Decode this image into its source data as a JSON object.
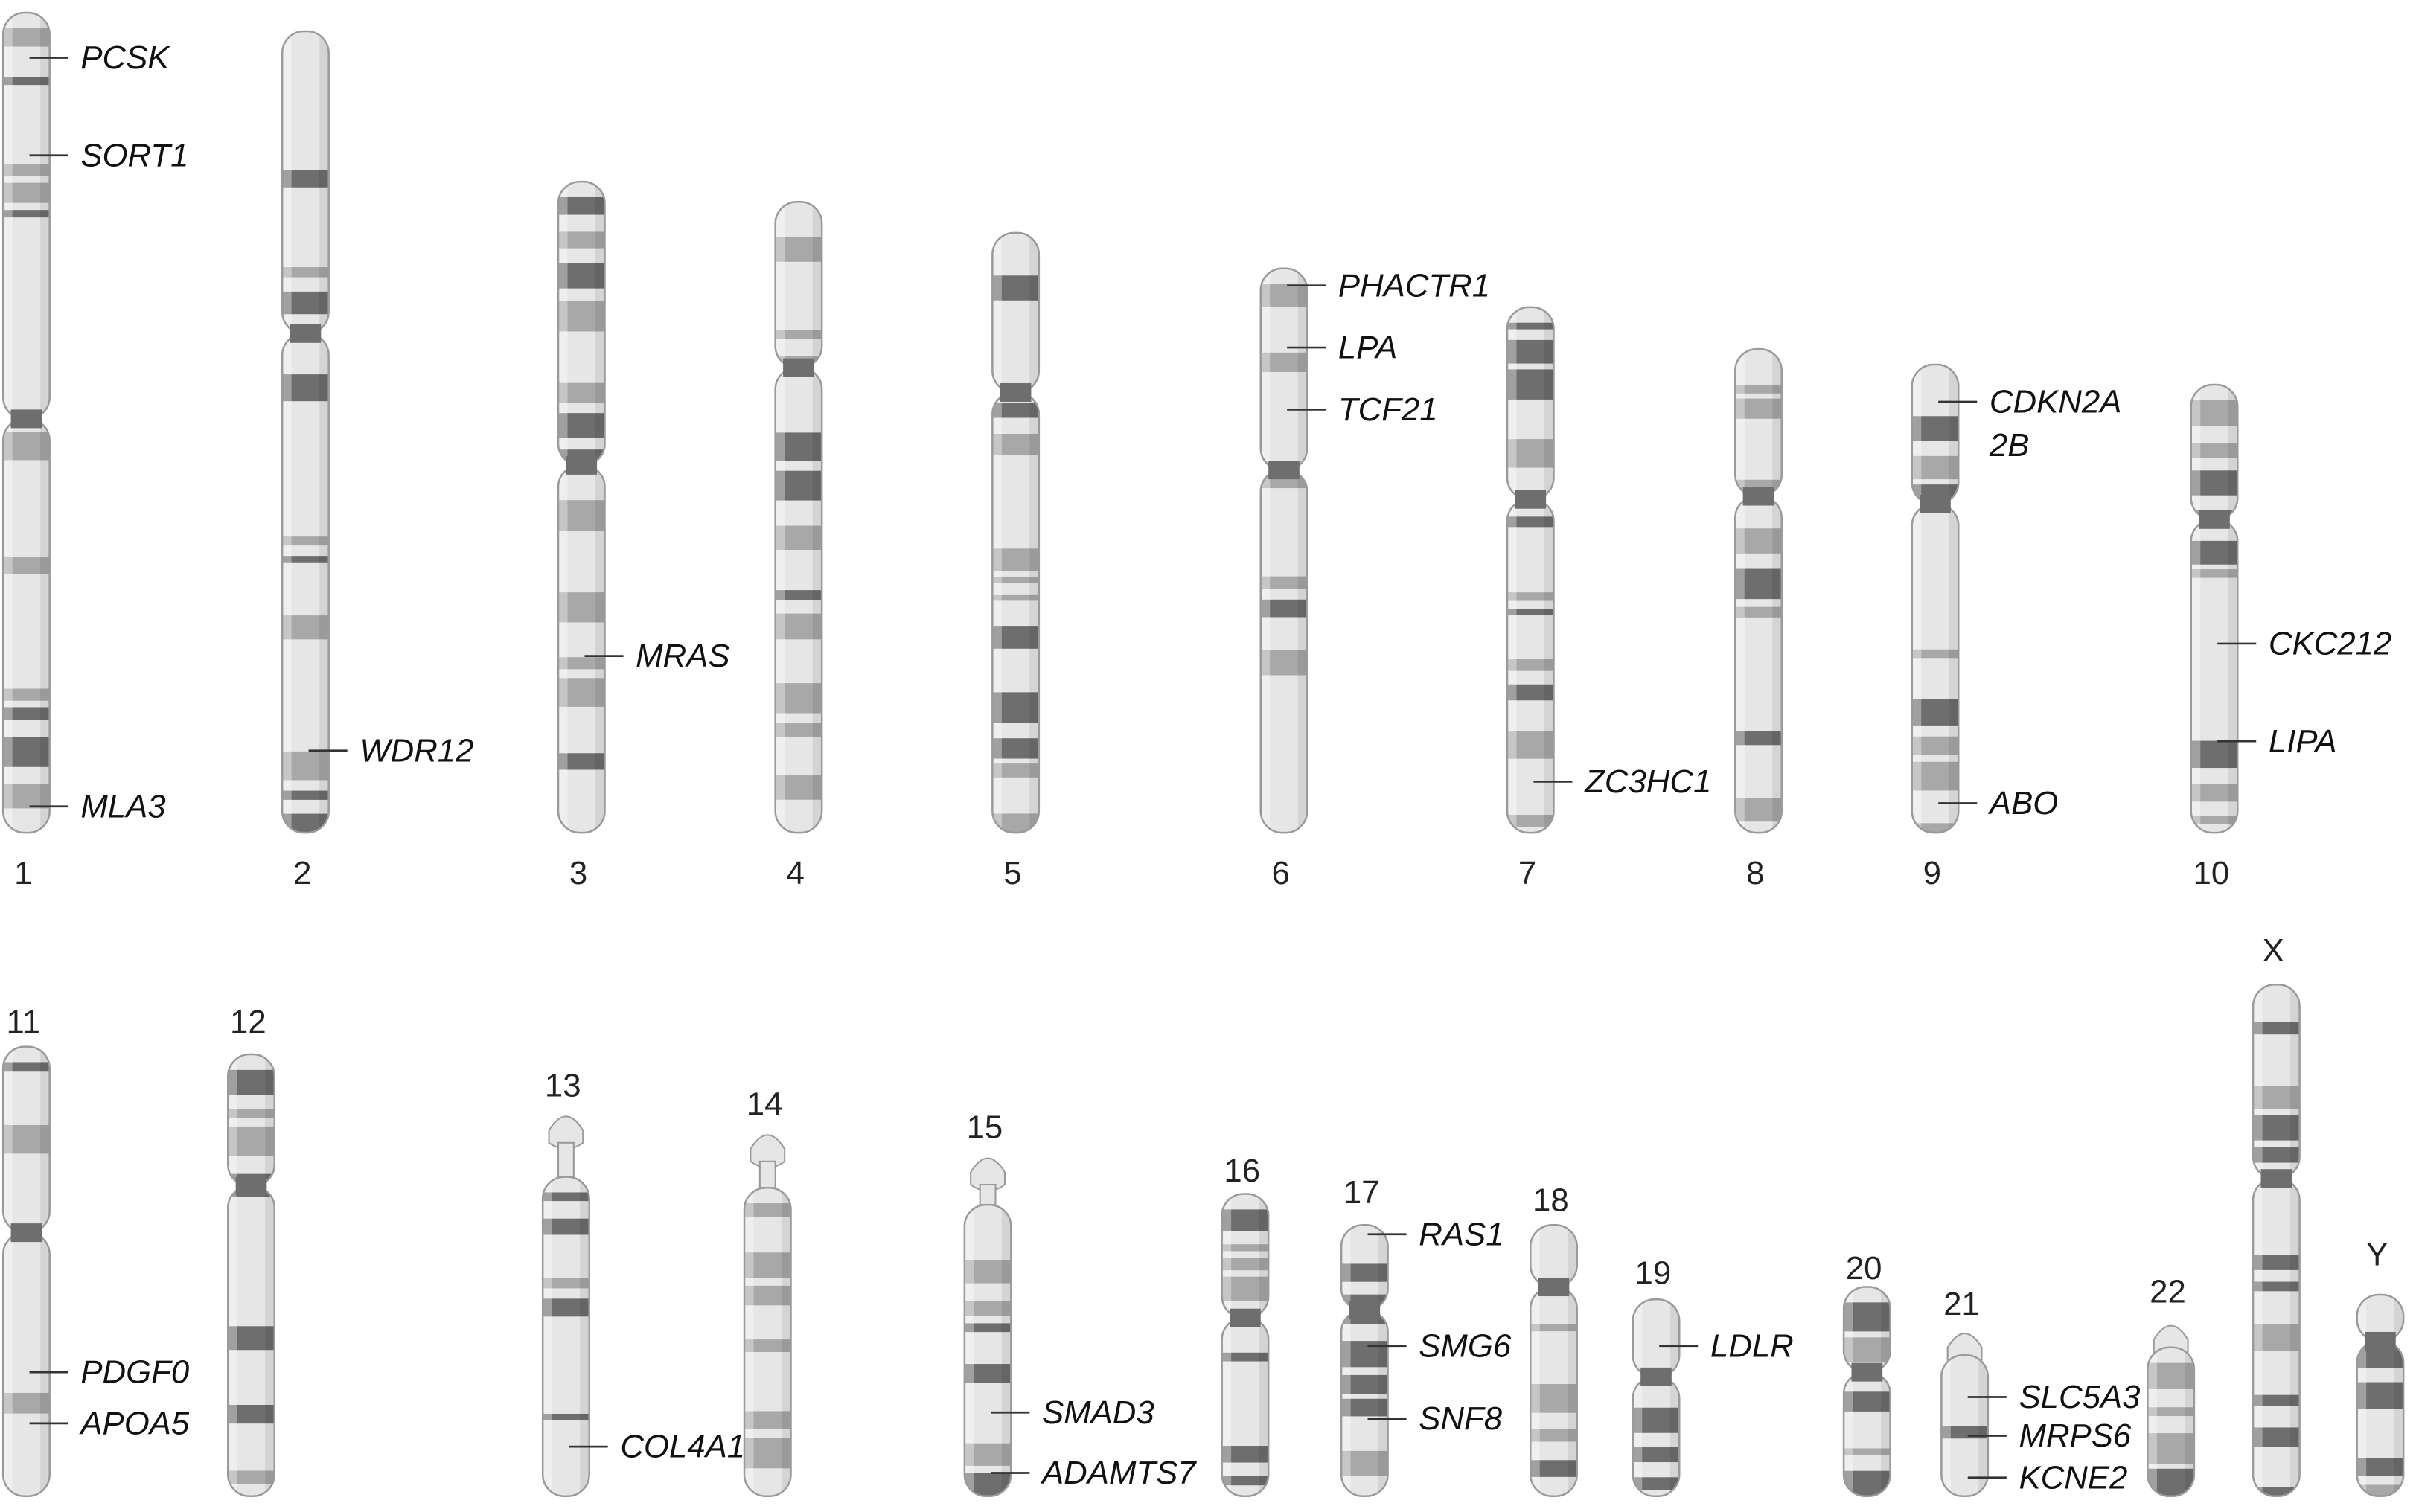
{
  "chromosomes": [
    {
      "id": "1",
      "genes": [
        "PCSK",
        "SORT1",
        "MLA3"
      ]
    },
    {
      "id": "2",
      "genes": [
        "WDR12"
      ]
    },
    {
      "id": "3",
      "genes": [
        "MRAS"
      ]
    },
    {
      "id": "4",
      "genes": []
    },
    {
      "id": "5",
      "genes": []
    },
    {
      "id": "6",
      "genes": [
        "PHACTR1",
        "LPA",
        "TCF21"
      ]
    },
    {
      "id": "7",
      "genes": [
        "ZC3HC1"
      ]
    },
    {
      "id": "8",
      "genes": []
    },
    {
      "id": "9",
      "genes": [
        "CDKN2A",
        "2B",
        "ABO"
      ]
    },
    {
      "id": "10",
      "genes": [
        "CKC212",
        "LIPA"
      ]
    },
    {
      "id": "11",
      "genes": [
        "PDGF0",
        "APOA5"
      ]
    },
    {
      "id": "12",
      "genes": []
    },
    {
      "id": "13",
      "genes": [
        "COL4A1"
      ]
    },
    {
      "id": "14",
      "genes": []
    },
    {
      "id": "15",
      "genes": [
        "SMAD3",
        "ADAMTS7"
      ]
    },
    {
      "id": "16",
      "genes": []
    },
    {
      "id": "17",
      "genes": [
        "RAS1",
        "SMG6",
        "SNF8"
      ]
    },
    {
      "id": "18",
      "genes": []
    },
    {
      "id": "19",
      "genes": [
        "LDLR"
      ]
    },
    {
      "id": "20",
      "genes": []
    },
    {
      "id": "21",
      "genes": [
        "SLC5A3",
        "MRPS6",
        "KCNE2"
      ]
    },
    {
      "id": "22",
      "genes": []
    },
    {
      "id": "X",
      "genes": []
    },
    {
      "id": "Y",
      "genes": []
    }
  ],
  "colors": {
    "dark_band": "#6e6e6e",
    "mid_band": "#a8a8a8",
    "light_band": "#e6e6e6",
    "outline": "#9a9a9a",
    "text": "#111111"
  }
}
